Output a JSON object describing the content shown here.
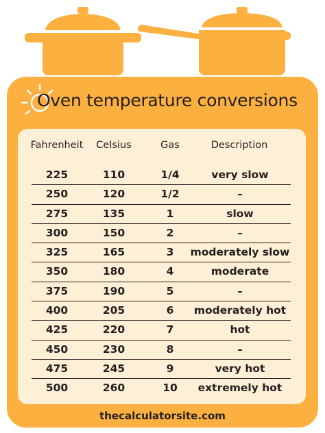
{
  "title": "Oven temperature conversions",
  "columns": {
    "fahrenheit": "Fahrenheit",
    "celsius": "Celsius",
    "gas": "Gas",
    "description": "Description"
  },
  "rows": [
    {
      "f": "225",
      "c": "110",
      "gas": "1/4",
      "desc": "very slow"
    },
    {
      "f": "250",
      "c": "120",
      "gas": "1/2",
      "desc": "–"
    },
    {
      "f": "275",
      "c": "135",
      "gas": "1",
      "desc": "slow"
    },
    {
      "f": "300",
      "c": "150",
      "gas": "2",
      "desc": "–"
    },
    {
      "f": "325",
      "c": "165",
      "gas": "3",
      "desc": "moderately slow"
    },
    {
      "f": "350",
      "c": "180",
      "gas": "4",
      "desc": "moderate"
    },
    {
      "f": "375",
      "c": "190",
      "gas": "5",
      "desc": "–"
    },
    {
      "f": "400",
      "c": "205",
      "gas": "6",
      "desc": "moderately hot"
    },
    {
      "f": "425",
      "c": "220",
      "gas": "7",
      "desc": "hot"
    },
    {
      "f": "450",
      "c": "230",
      "gas": "8",
      "desc": "–"
    },
    {
      "f": "475",
      "c": "245",
      "gas": "9",
      "desc": "very hot"
    },
    {
      "f": "500",
      "c": "260",
      "gas": "10",
      "desc": "extremely hot"
    }
  ],
  "footer": "thecalculatorsite.com",
  "colors": {
    "accent": "#fbb040",
    "panel": "#fef0d6",
    "text": "#231f20"
  },
  "icons": [
    "stock-pot-icon",
    "saucepan-icon",
    "sun-icon"
  ]
}
